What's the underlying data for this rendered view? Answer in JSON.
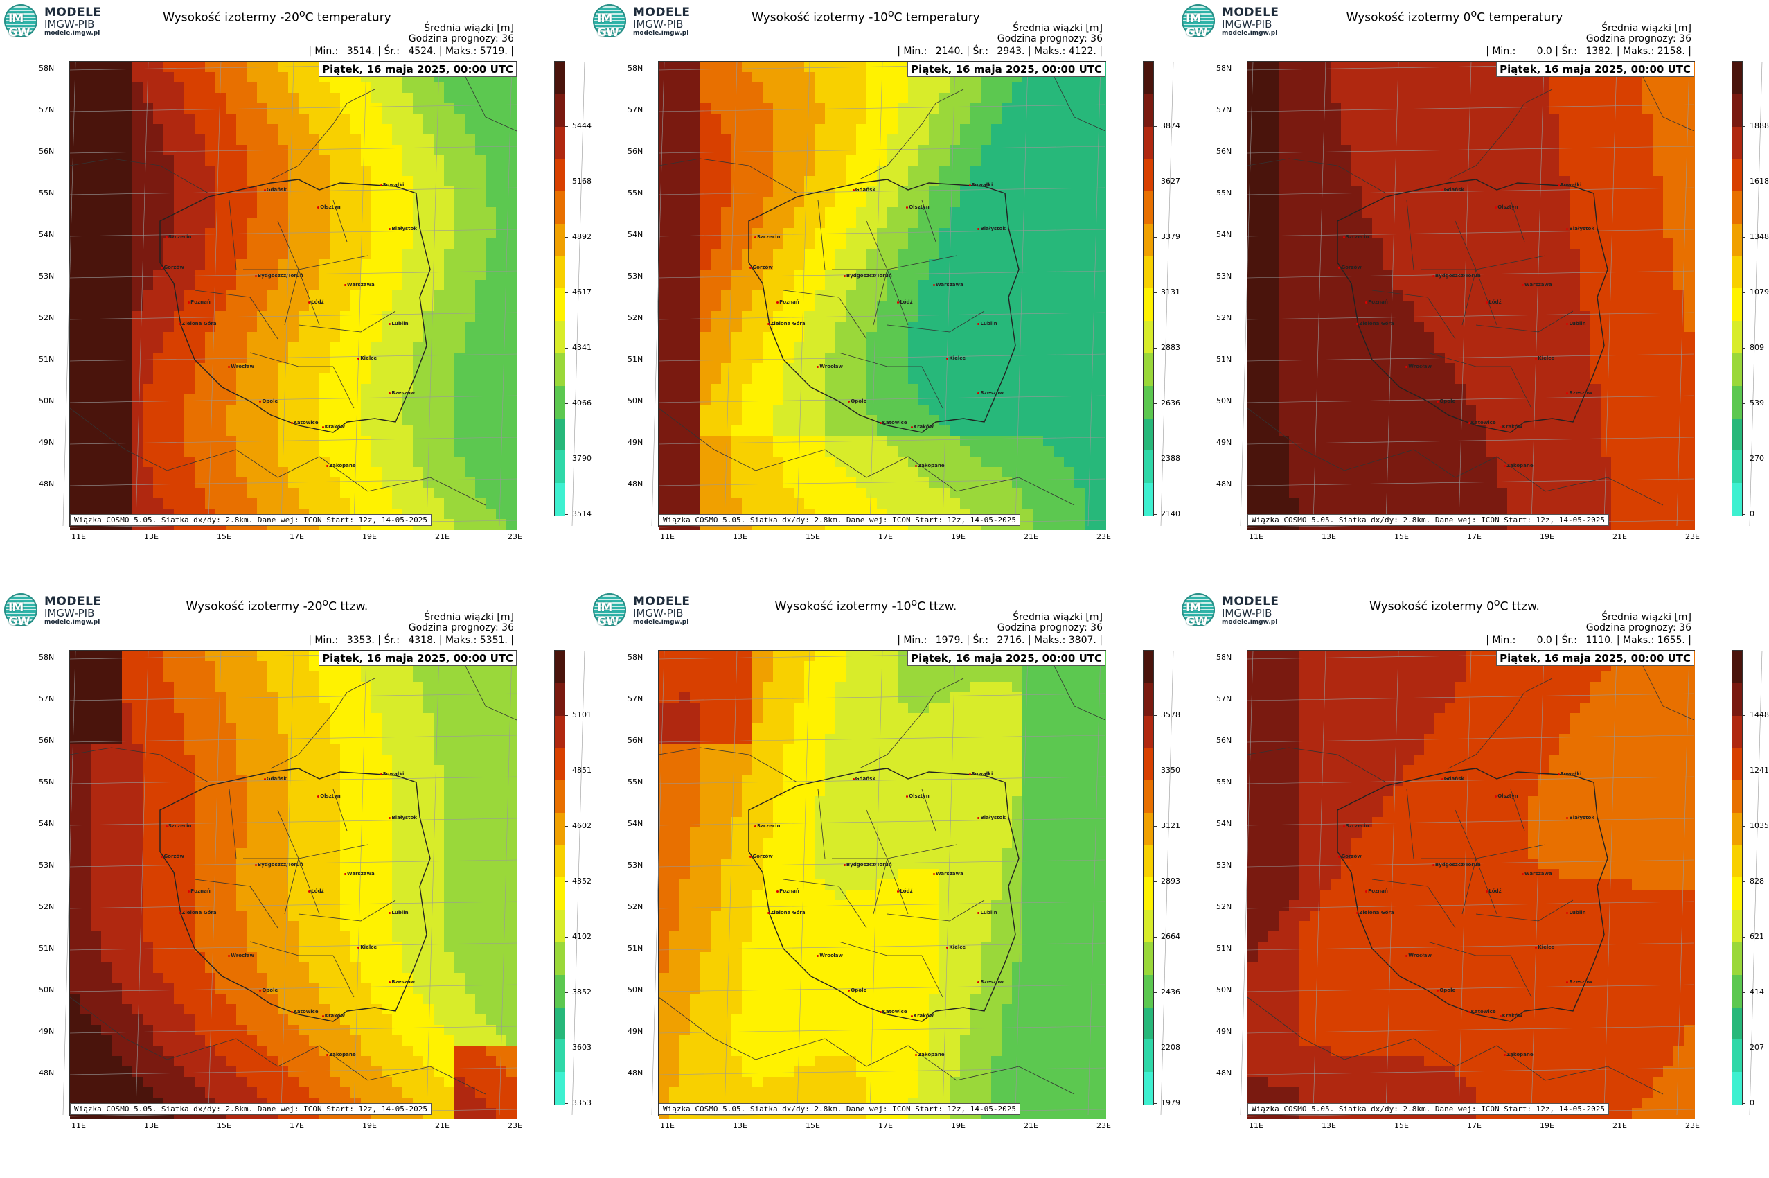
{
  "logo": {
    "line1": "MODELE",
    "line2": "IMGW-PIB",
    "line3": "modele.imgw.pl",
    "mark": "IM GW"
  },
  "common": {
    "mean_label": "Średnia wiązki [m]",
    "forecast_hour": "Godzina prognozy: 36",
    "min_label": "| Min.:",
    "mean_short": "| Śr.:",
    "max_label": "| Maks.:",
    "date": "Piątek, 16 maja 2025, 00:00 UTC",
    "source": "Wiązka COSMO 5.05. Siatka dx/dy: 2.8km. Dane wej: ICON Start: 12z, 14-05-2025",
    "lat_labels": [
      "58N",
      "57N",
      "56N",
      "55N",
      "54N",
      "53N",
      "52N",
      "51N",
      "50N",
      "49N",
      "48N"
    ],
    "lon_labels": [
      "11E",
      "13E",
      "15E",
      "17E",
      "19E",
      "21E",
      "23E"
    ],
    "cities": [
      "Gdańsk",
      "Olsztyn",
      "Suwałki",
      "Szczecin",
      "Białystok",
      "Bydgoszcz/Toruń",
      "Gorzów",
      "Poznań",
      "Warszawa",
      "Łódź",
      "Zielona Góra",
      "Lublin",
      "Wrocław",
      "Kielce",
      "Opole",
      "Rzeszów",
      "Katowice",
      "Kraków",
      "Zakopane"
    ]
  },
  "panels": [
    {
      "title_pre": "Wysokość izotermy -20",
      "title_post": "C temperatury",
      "min": "3514.",
      "mean": "4524.",
      "max": "5719. |",
      "cbar_labels": [
        "5444",
        "5168",
        "4892",
        "4617",
        "4341",
        "4066",
        "3790",
        "3514"
      ],
      "palette": "warm"
    },
    {
      "title_pre": "Wysokość izotermy -10",
      "title_post": "C temperatury",
      "min": "2140.",
      "mean": "2943.",
      "max": "4122. |",
      "cbar_labels": [
        "3874",
        "3627",
        "3379",
        "3131",
        "2883",
        "2636",
        "2388",
        "2140"
      ],
      "palette": "greenish"
    },
    {
      "title_pre": "Wysokość izotermy 0",
      "title_post": "C temperatury",
      "min": "0.0",
      "mean": "1382.",
      "max": "2158. |",
      "cbar_labels": [
        "1888",
        "1618",
        "1348",
        "1079",
        "809",
        "539",
        "270",
        "0"
      ],
      "palette": "hot"
    },
    {
      "title_pre": "Wysokość izotermy -20",
      "title_post": "C ttzw.",
      "min": "3353.",
      "mean": "4318.",
      "max": "5351. |",
      "cbar_labels": [
        "5101",
        "4851",
        "4602",
        "4352",
        "4102",
        "3852",
        "3603",
        "3353"
      ],
      "palette": "warm2"
    },
    {
      "title_pre": "Wysokość izotermy -10",
      "title_post": "C ttzw.",
      "min": "1979.",
      "mean": "2716.",
      "max": "3807. |",
      "cbar_labels": [
        "3578",
        "3350",
        "3121",
        "2893",
        "2664",
        "2436",
        "2208",
        "1979"
      ],
      "palette": "yellow"
    },
    {
      "title_pre": "Wysokość izotermy 0",
      "title_post": "C ttzw.",
      "min": "0.0",
      "mean": "1110.",
      "max": "1655. |",
      "cbar_labels": [
        "1448",
        "1241",
        "1035",
        "828",
        "621",
        "414",
        "207",
        "0"
      ],
      "palette": "hot2"
    }
  ],
  "colors": {
    "scale": [
      "#3ef0d0",
      "#2fd8a8",
      "#27b87a",
      "#5cc850",
      "#9ad83a",
      "#d8ec2a",
      "#fff200",
      "#f8d000",
      "#f0a000",
      "#e87000",
      "#d84000",
      "#b02810",
      "#7a1a10",
      "#4a140c"
    ]
  }
}
